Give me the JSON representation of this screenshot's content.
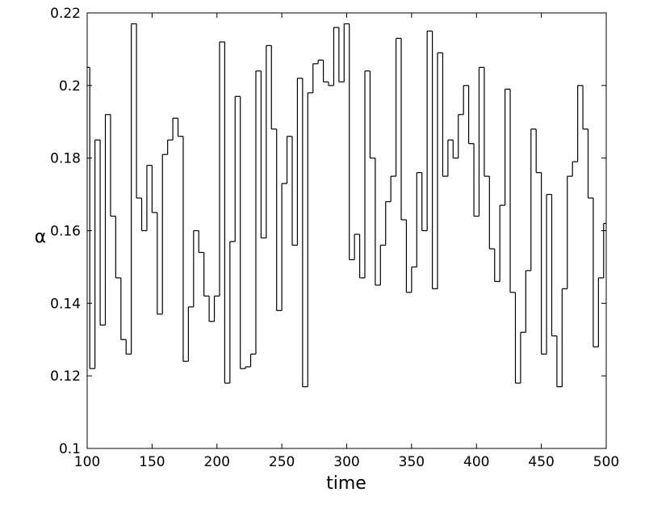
{
  "chart_data": {
    "type": "step",
    "xlabel": "time",
    "ylabel": "α",
    "x": [
      100,
      102,
      106,
      110,
      114,
      118,
      122,
      126,
      130,
      134,
      138,
      142,
      146,
      150,
      154,
      158,
      162,
      166,
      170,
      174,
      178,
      182,
      186,
      190,
      194,
      198,
      202,
      206,
      210,
      214,
      218,
      222,
      226,
      230,
      234,
      238,
      242,
      246,
      250,
      254,
      258,
      262,
      266,
      270,
      274,
      278,
      282,
      286,
      290,
      294,
      298,
      302,
      306,
      310,
      314,
      318,
      322,
      326,
      330,
      334,
      338,
      342,
      346,
      350,
      354,
      358,
      362,
      366,
      370,
      374,
      378,
      382,
      386,
      390,
      394,
      398,
      402,
      406,
      410,
      414,
      418,
      422,
      426,
      430,
      434,
      438,
      442,
      446,
      450,
      454,
      458,
      462,
      466,
      470,
      474,
      478,
      482,
      486,
      490,
      494,
      498
    ],
    "values": [
      0.205,
      0.122,
      0.185,
      0.134,
      0.192,
      0.164,
      0.147,
      0.13,
      0.126,
      0.217,
      0.169,
      0.16,
      0.178,
      0.165,
      0.137,
      0.181,
      0.185,
      0.191,
      0.186,
      0.124,
      0.139,
      0.16,
      0.154,
      0.142,
      0.135,
      0.142,
      0.212,
      0.118,
      0.157,
      0.197,
      0.122,
      0.1225,
      0.126,
      0.204,
      0.158,
      0.211,
      0.188,
      0.138,
      0.173,
      0.186,
      0.156,
      0.202,
      0.117,
      0.198,
      0.206,
      0.207,
      0.201,
      0.2,
      0.216,
      0.201,
      0.217,
      0.152,
      0.159,
      0.147,
      0.204,
      0.18,
      0.145,
      0.156,
      0.168,
      0.175,
      0.213,
      0.163,
      0.143,
      0.15,
      0.176,
      0.16,
      0.215,
      0.144,
      0.209,
      0.175,
      0.185,
      0.18,
      0.192,
      0.2,
      0.184,
      0.164,
      0.205,
      0.175,
      0.155,
      0.146,
      0.167,
      0.199,
      0.143,
      0.118,
      0.132,
      0.149,
      0.188,
      0.176,
      0.126,
      0.17,
      0.131,
      0.117,
      0.144,
      0.175,
      0.179,
      0.2,
      0.188,
      0.169,
      0.128,
      0.147,
      0.162
    ],
    "color": "#000000",
    "xlim": [
      100,
      500
    ],
    "xticks": [
      100,
      150,
      200,
      250,
      300,
      350,
      400,
      450,
      500
    ],
    "ylim": [
      0.1,
      0.22
    ],
    "yticks": [
      0.1,
      0.12,
      0.14,
      0.16,
      0.18,
      0.2,
      0.22
    ]
  }
}
